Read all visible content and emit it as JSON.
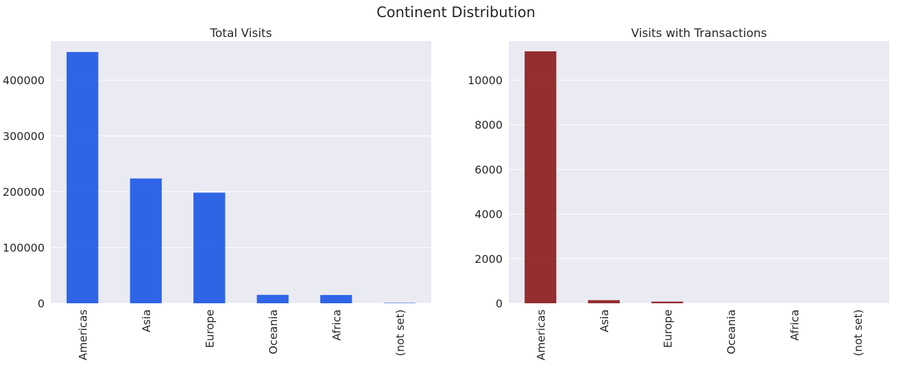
{
  "figure": {
    "title": "Continent Distribution"
  },
  "chart_data": [
    {
      "type": "bar",
      "title": "Total Visits",
      "xlabel": "",
      "ylabel": "",
      "categories": [
        "Americas",
        "Asia",
        "Europe",
        "Oceania",
        "Africa",
        "(not set)"
      ],
      "values": [
        450400,
        223700,
        198300,
        15100,
        14800,
        700
      ],
      "yticks": [
        0,
        100000,
        200000,
        300000,
        400000
      ],
      "ylim": [
        0,
        470000
      ],
      "grid": true,
      "color": "#1a56e6"
    },
    {
      "type": "bar",
      "title": "Visits with Transactions",
      "xlabel": "",
      "ylabel": "",
      "categories": [
        "Americas",
        "Asia",
        "Europe",
        "Oceania",
        "Africa",
        "(not set)"
      ],
      "values": [
        11290,
        140,
        75,
        0,
        0,
        0
      ],
      "yticks": [
        0,
        2000,
        4000,
        6000,
        8000,
        10000
      ],
      "ylim": [
        0,
        11750
      ],
      "grid": true,
      "color": "#8b1a1a"
    }
  ]
}
